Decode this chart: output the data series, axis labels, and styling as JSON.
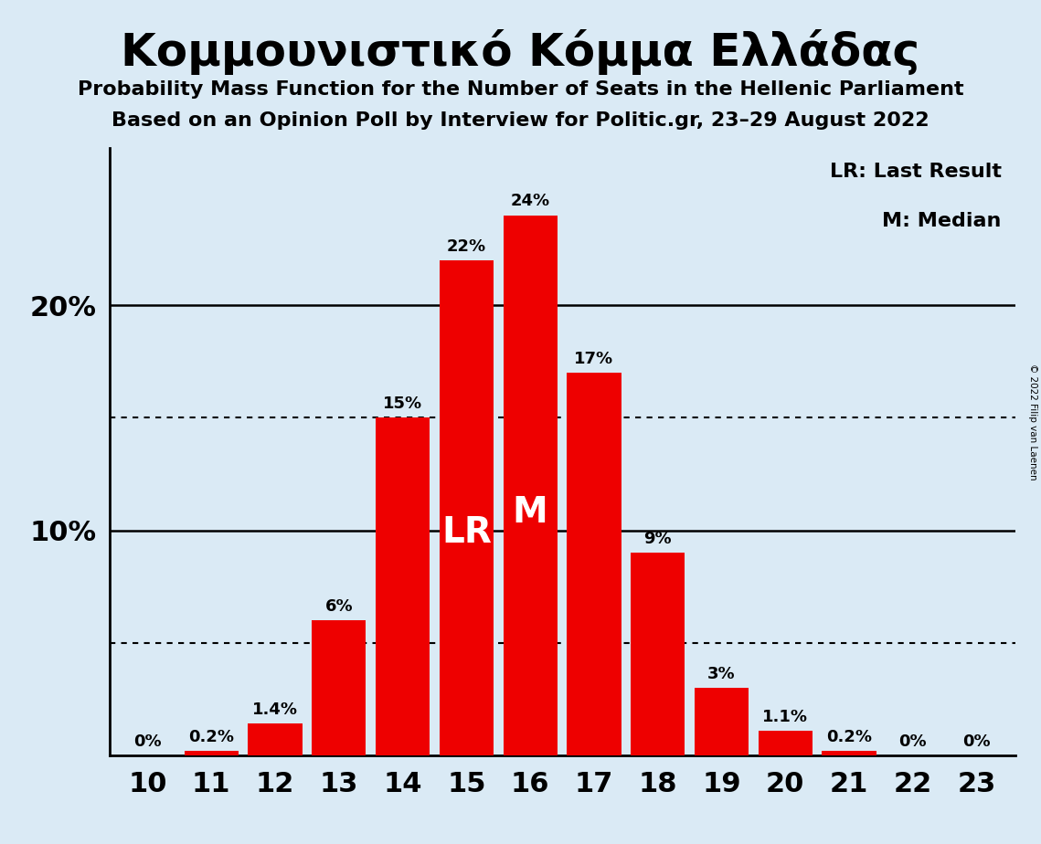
{
  "title": "Κομμουνιστικό Κόμμα Ελλάδας",
  "subtitle1": "Probability Mass Function for the Number of Seats in the Hellenic Parliament",
  "subtitle2": "Based on an Opinion Poll by Interview for Politic.gr, 23–29 August 2022",
  "copyright": "© 2022 Filip van Laenen",
  "seats": [
    10,
    11,
    12,
    13,
    14,
    15,
    16,
    17,
    18,
    19,
    20,
    21,
    22,
    23
  ],
  "probabilities": [
    0.0,
    0.2,
    1.4,
    6.0,
    15.0,
    22.0,
    24.0,
    17.0,
    9.0,
    3.0,
    1.1,
    0.2,
    0.0,
    0.0
  ],
  "labels": [
    "0%",
    "0.2%",
    "1.4%",
    "6%",
    "15%",
    "22%",
    "24%",
    "17%",
    "9%",
    "3%",
    "1.1%",
    "0.2%",
    "0%",
    "0%"
  ],
  "bar_color": "#ee0000",
  "background_color": "#daeaf5",
  "lr_seat": 15,
  "median_seat": 16,
  "dotted_lines": [
    5.0,
    15.0
  ],
  "solid_lines": [
    10.0,
    20.0
  ],
  "ylim": [
    0,
    27
  ],
  "legend_lr": "LR: Last Result",
  "legend_m": "M: Median"
}
